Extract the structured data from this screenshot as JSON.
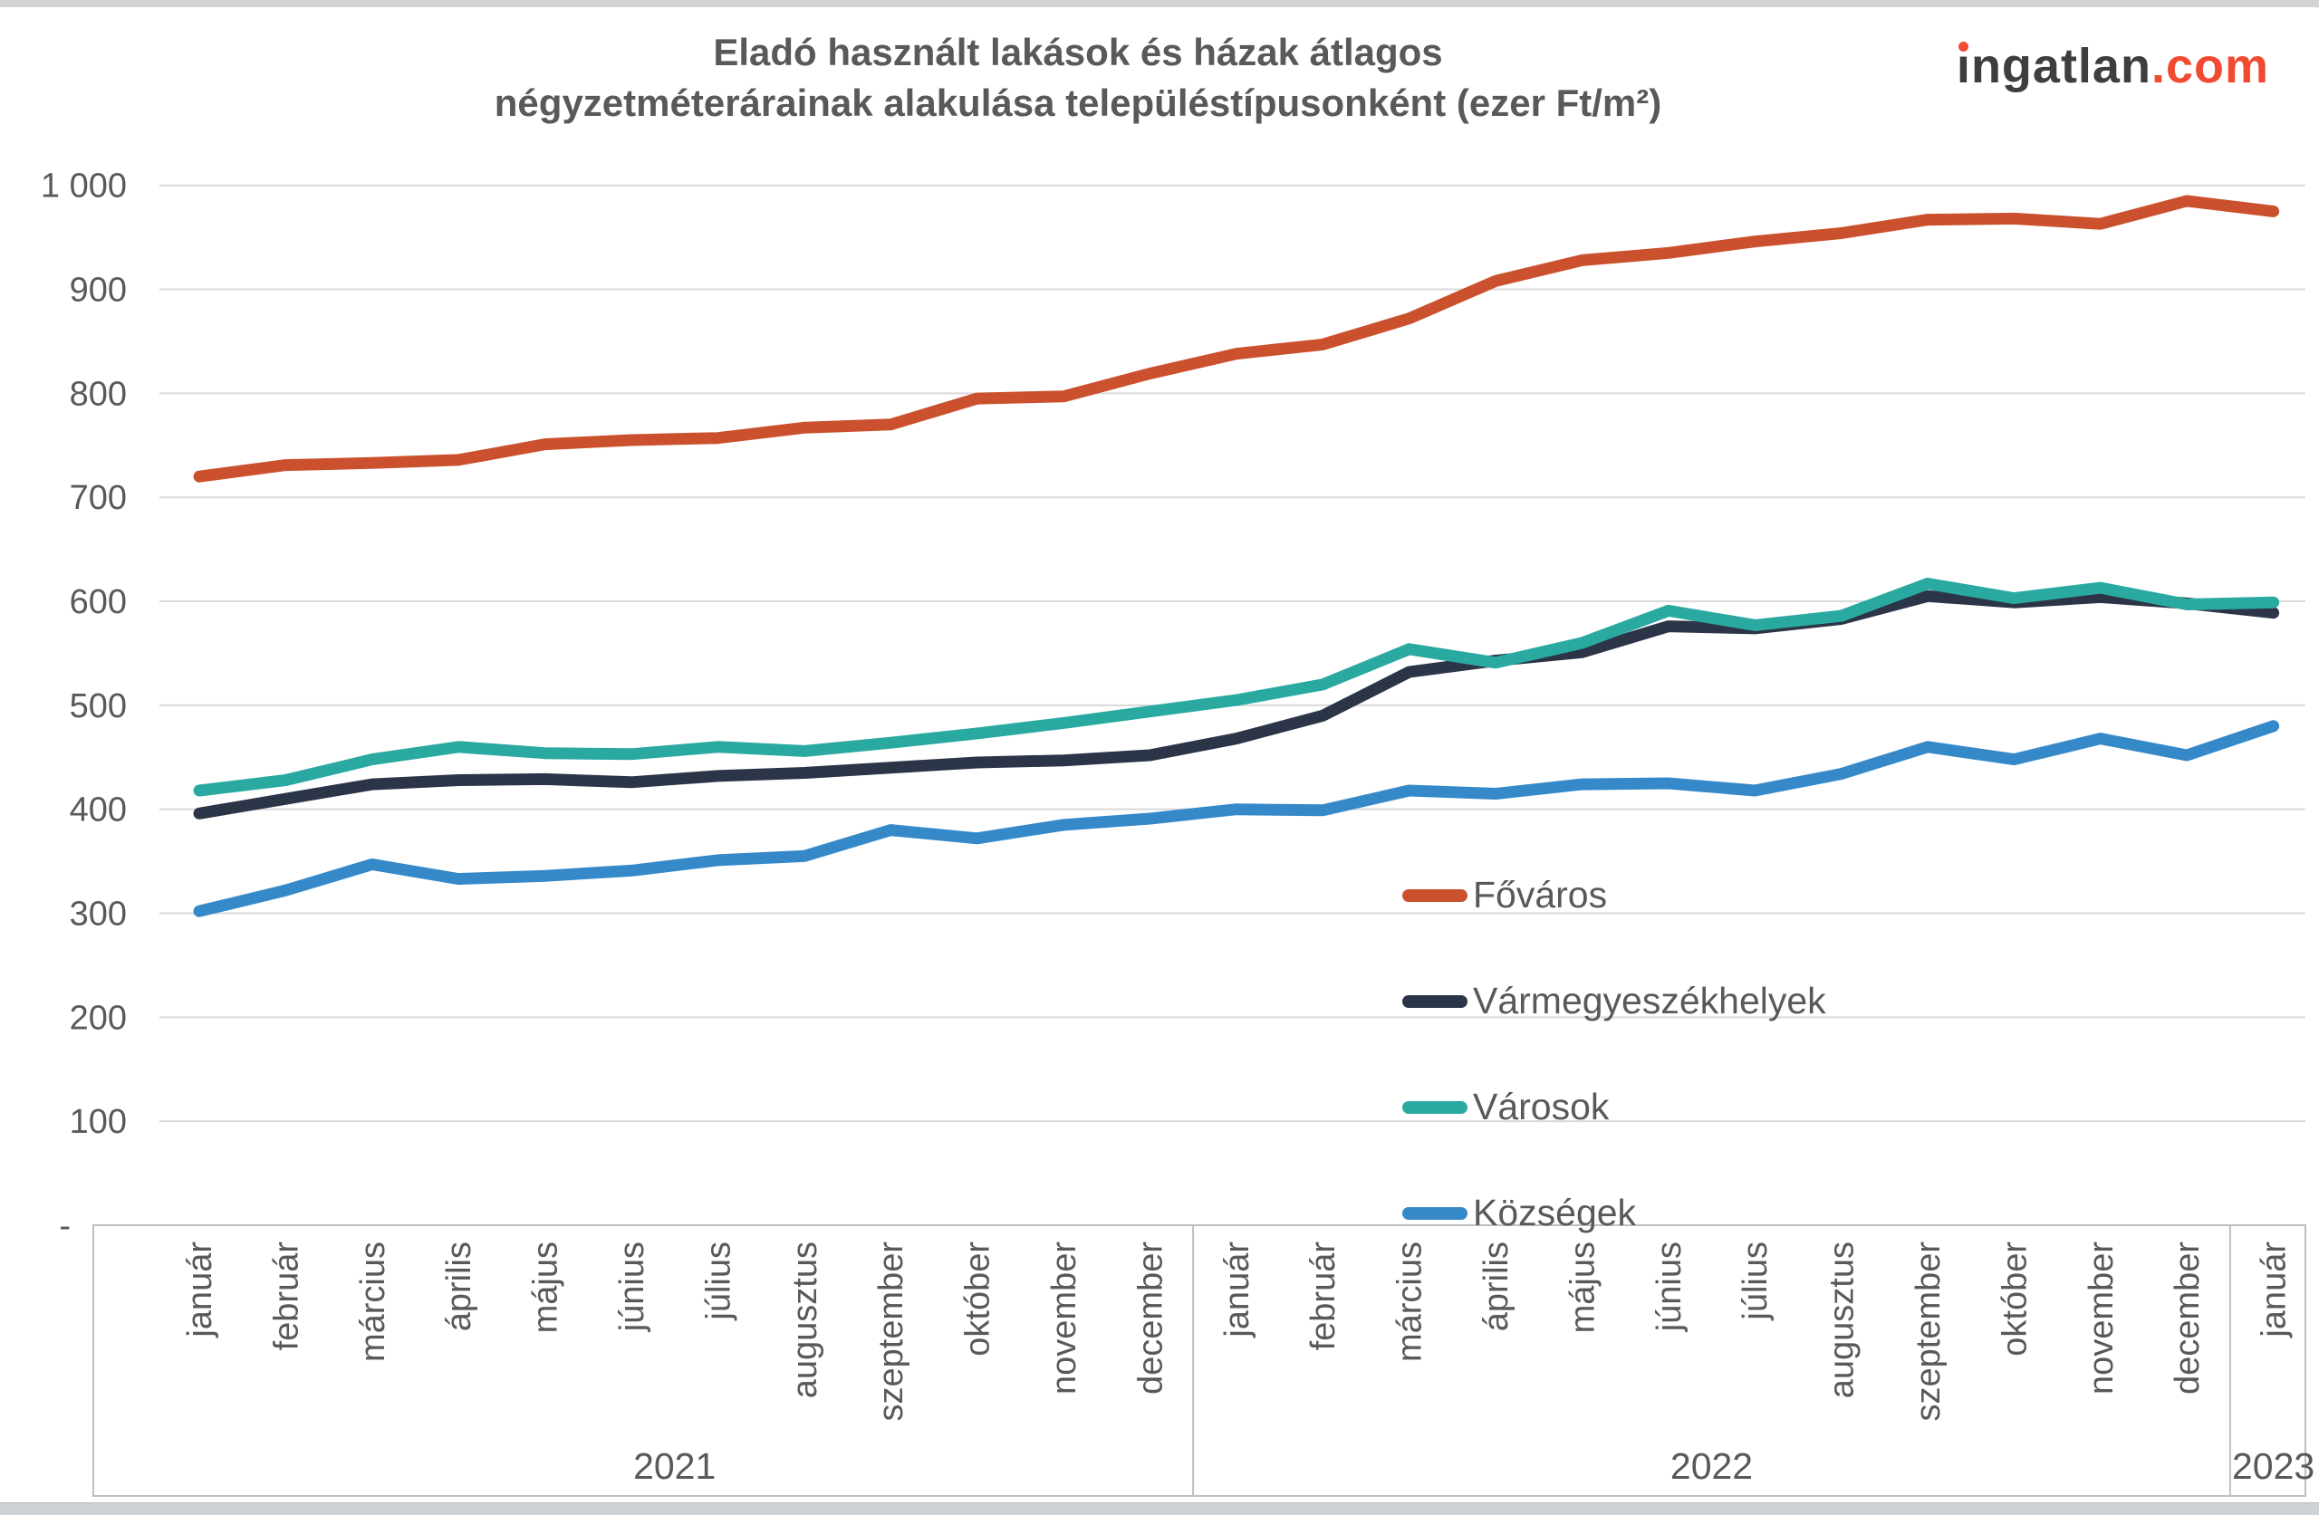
{
  "title": {
    "line1": "Eladó használt lakások és házak átlagos",
    "line2": "négyzetméterárainak alakulása településtípusonként (ezer Ft/m²)"
  },
  "logo": {
    "first_letter": "i",
    "rest": "ngatlan",
    "tld": ".com"
  },
  "colors": {
    "fovaros": "#cb512e",
    "varmegyeszekhelyek": "#2b3547",
    "varosok": "#2aa9a1",
    "kozsegek": "#3589c9",
    "gridline": "#d9d9d9",
    "axis_box": "#bfbfbf",
    "axis_text": "#595959",
    "logo_orange": "#f04b31",
    "logo_gray": "#3e3e3e"
  },
  "chart_data": {
    "type": "line",
    "title": "Eladó használt lakások és házak átlagos négyzetméterárainak alakulása településtípusonként (ezer Ft/m²)",
    "ylim": [
      0,
      1000
    ],
    "grid": true,
    "legend_position": "inside-right",
    "y_tick_labels": [
      "1 000",
      "900",
      "800",
      "700",
      "600",
      "500",
      "400",
      "300",
      "200",
      "100",
      "-"
    ],
    "y_tick_values": [
      1000,
      900,
      800,
      700,
      600,
      500,
      400,
      300,
      200,
      100,
      0
    ],
    "x_groups": [
      {
        "year": "2021",
        "months": [
          "január",
          "február",
          "március",
          "április",
          "május",
          "június",
          "július",
          "augusztus",
          "szeptember",
          "október",
          "november",
          "december"
        ]
      },
      {
        "year": "2022",
        "months": [
          "január",
          "február",
          "március",
          "április",
          "május",
          "június",
          "július",
          "augusztus",
          "szeptember",
          "október",
          "november",
          "december"
        ]
      },
      {
        "year": "2023",
        "months": [
          "január"
        ]
      }
    ],
    "series": [
      {
        "id": "fovaros",
        "name": "Főváros",
        "values": [
          720,
          731,
          733,
          736,
          751,
          755,
          757,
          767,
          770,
          795,
          797,
          819,
          838,
          847,
          872,
          908,
          928,
          935,
          946,
          954,
          967,
          968,
          963,
          985,
          975
        ]
      },
      {
        "id": "varmegyeszekhelyek",
        "name": "Vármegyeszékhelyek",
        "values": [
          396,
          410,
          424,
          428,
          429,
          426,
          432,
          435,
          440,
          445,
          447,
          452,
          468,
          490,
          532,
          543,
          551,
          576,
          574,
          583,
          605,
          599,
          604,
          598,
          589
        ]
      },
      {
        "id": "varosok",
        "name": "Városok",
        "values": [
          418,
          428,
          448,
          460,
          454,
          453,
          460,
          456,
          464,
          473,
          483,
          494,
          505,
          520,
          554,
          541,
          560,
          591,
          577,
          586,
          617,
          603,
          613,
          597,
          599
        ]
      },
      {
        "id": "kozsegek",
        "name": "Községek",
        "values": [
          302,
          322,
          347,
          333,
          336,
          341,
          351,
          355,
          380,
          372,
          385,
          391,
          400,
          399,
          418,
          415,
          424,
          425,
          418,
          434,
          460,
          448,
          468,
          452,
          480
        ]
      }
    ]
  }
}
